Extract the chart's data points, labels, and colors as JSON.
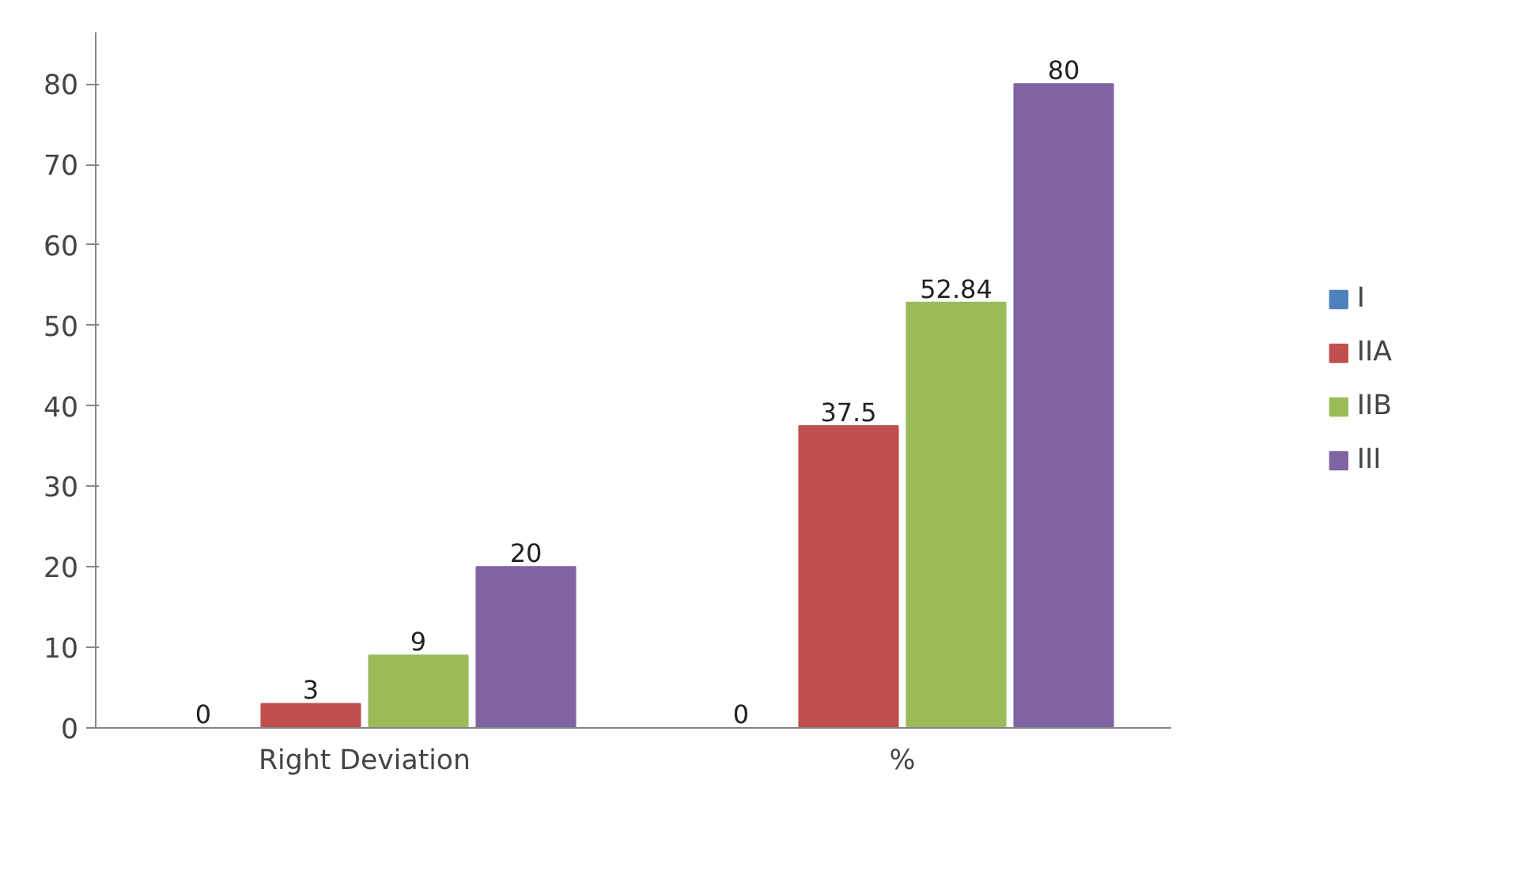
{
  "chart_data": {
    "type": "bar",
    "categories": [
      "Right Deviation",
      "%"
    ],
    "series": [
      {
        "name": "I",
        "color": "#4f81bd",
        "values": [
          0,
          0
        ]
      },
      {
        "name": "IIA",
        "color": "#c0504d",
        "values": [
          3,
          37.5
        ]
      },
      {
        "name": "IIB",
        "color": "#9bbb59",
        "values": [
          9,
          52.84
        ]
      },
      {
        "name": "III",
        "color": "#8064a2",
        "values": [
          20,
          80
        ]
      }
    ],
    "ylim": [
      0,
      80
    ],
    "yticks": [
      0,
      10,
      20,
      30,
      40,
      50,
      60,
      70,
      80
    ],
    "grid": false,
    "legend": "right",
    "data_labels": true
  }
}
